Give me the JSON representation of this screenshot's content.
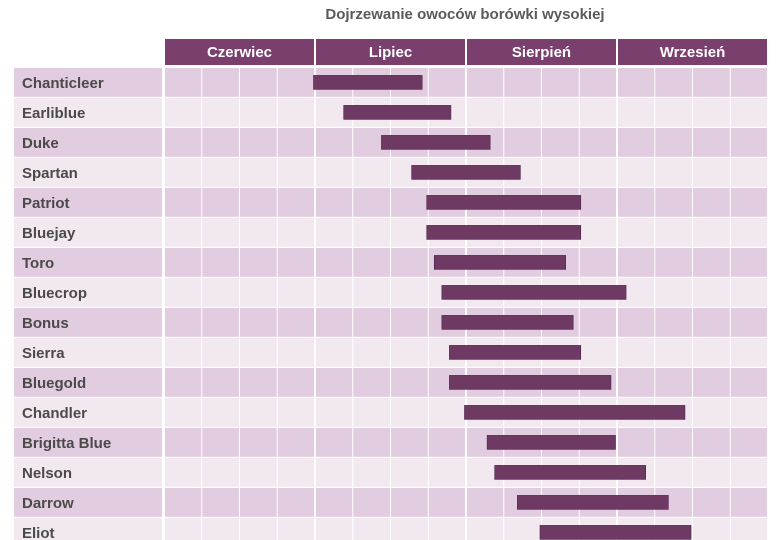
{
  "chart_data": {
    "type": "gantt",
    "title": "Dojrzewanie owoców borówki wysokiej",
    "months": [
      "Czerwiec",
      "Lipiec",
      "Sierpień",
      "Wrzesień"
    ],
    "x_unit": "month (0 = start of Czerwiec)",
    "xlim": [
      0,
      4
    ],
    "grid": true,
    "varieties": [
      {
        "name": "Chanticleer",
        "start": 0.99,
        "end": 1.71
      },
      {
        "name": "Earliblue",
        "start": 1.19,
        "end": 1.9
      },
      {
        "name": "Duke",
        "start": 1.44,
        "end": 2.16
      },
      {
        "name": "Spartan",
        "start": 1.64,
        "end": 2.36
      },
      {
        "name": "Patriot",
        "start": 1.74,
        "end": 2.76
      },
      {
        "name": "Bluejay",
        "start": 1.74,
        "end": 2.76
      },
      {
        "name": "Toro",
        "start": 1.79,
        "end": 2.66
      },
      {
        "name": "Bluecrop",
        "start": 1.84,
        "end": 3.06
      },
      {
        "name": "Bonus",
        "start": 1.84,
        "end": 2.71
      },
      {
        "name": "Sierra",
        "start": 1.89,
        "end": 2.76
      },
      {
        "name": "Bluegold",
        "start": 1.89,
        "end": 2.96
      },
      {
        "name": "Chandler",
        "start": 1.99,
        "end": 3.45
      },
      {
        "name": "Brigitta Blue",
        "start": 2.14,
        "end": 2.99
      },
      {
        "name": "Nelson",
        "start": 2.19,
        "end": 3.19
      },
      {
        "name": "Darrow",
        "start": 2.34,
        "end": 3.34
      },
      {
        "name": "Eliot",
        "start": 2.49,
        "end": 3.49
      }
    ]
  },
  "colors": {
    "header": "#7b3f6e",
    "bar": "#6e3a64",
    "row_dark": "#e2ccdf",
    "row_light": "#f2e8f0",
    "grid": "#ffffff",
    "label": "#4a4a4a",
    "header_text": "#ffffff"
  }
}
